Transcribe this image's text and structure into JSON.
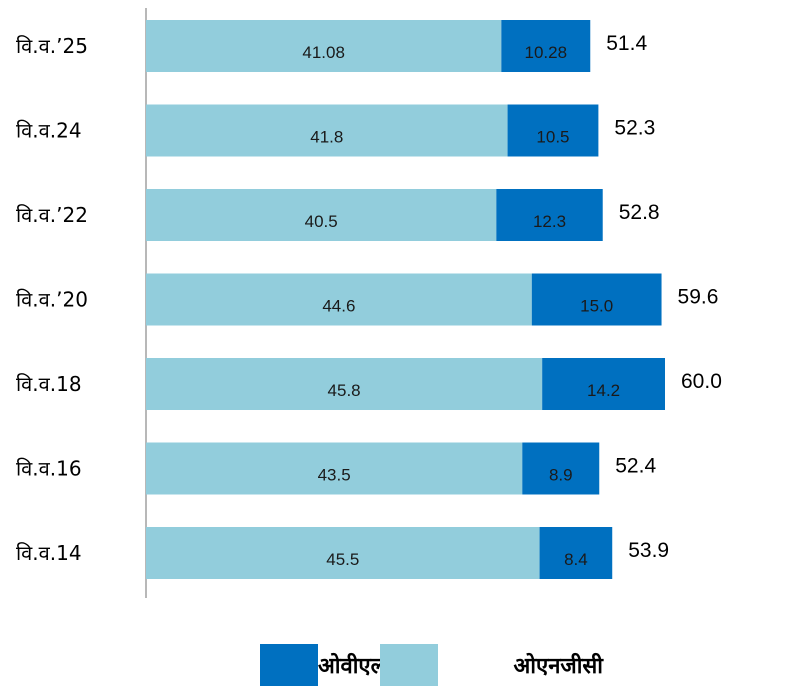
{
  "chart_data": {
    "type": "bar",
    "orientation": "horizontal",
    "stacked": true,
    "categories": [
      "वि.व.’25",
      "वि.व.24",
      "वि.व.’22",
      "वि.व.’20",
      "वि.व.18",
      "वि.व.16",
      "वि.व.14"
    ],
    "series": [
      {
        "name": "ओएनजीसी",
        "color": "#92cddc",
        "values": [
          41.08,
          41.8,
          40.5,
          44.6,
          45.8,
          43.5,
          45.5
        ],
        "labels": [
          "41.08",
          "41.8",
          "40.5",
          "44.6",
          "45.8",
          "43.5",
          "45.5"
        ]
      },
      {
        "name": "ओवीएल",
        "color": "#0070c0",
        "values": [
          10.28,
          10.5,
          12.3,
          15.0,
          14.2,
          8.9,
          8.4
        ],
        "labels": [
          "10.28",
          "10.5",
          "12.3",
          "15.0",
          "14.2",
          "8.9",
          "8.4"
        ]
      }
    ],
    "totals": [
      "51.4",
      "52.3",
      "52.8",
      "59.6",
      "60.0",
      "52.4",
      "53.9"
    ],
    "xlim": [
      0,
      70
    ],
    "grid": false,
    "legend_position": "bottom"
  },
  "legend": [
    {
      "label": "ओवीएल",
      "color": "#0070c0"
    },
    {
      "label": "ओएनजीसी",
      "color": "#92cddc"
    }
  ]
}
